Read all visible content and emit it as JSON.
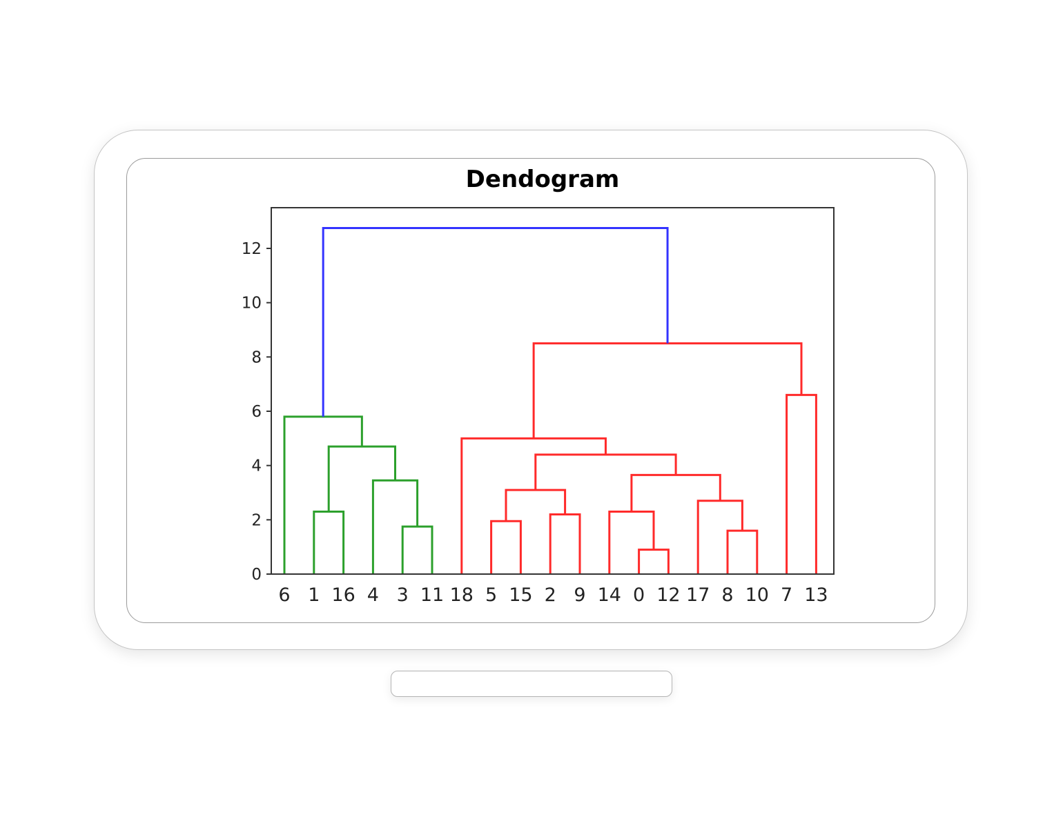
{
  "chart_data": {
    "type": "dendrogram",
    "title": "Dendogram",
    "xlabel": "",
    "ylabel": "",
    "ylim": [
      0,
      13.5
    ],
    "y_ticks": [
      0,
      2,
      4,
      6,
      8,
      10,
      12
    ],
    "grid": false,
    "leaf_order": [
      "6",
      "1",
      "16",
      "4",
      "3",
      "11",
      "18",
      "5",
      "15",
      "2",
      "9",
      "14",
      "0",
      "12",
      "17",
      "8",
      "10",
      "7",
      "13"
    ],
    "colors": {
      "cluster_1": "#2ca02c",
      "cluster_2": "#ff2a2a",
      "root_link": "#3333ff"
    },
    "merges": [
      {
        "id": "m_0_12",
        "left": "0",
        "right": "12",
        "height": 0.9,
        "color": "cluster_2"
      },
      {
        "id": "m_8_10",
        "left": "8",
        "right": "10",
        "height": 1.6,
        "color": "cluster_2"
      },
      {
        "id": "m_3_11",
        "left": "3",
        "right": "11",
        "height": 1.75,
        "color": "cluster_1"
      },
      {
        "id": "m_5_15",
        "left": "5",
        "right": "15",
        "height": 1.95,
        "color": "cluster_2"
      },
      {
        "id": "m_2_9",
        "left": "2",
        "right": "9",
        "height": 2.2,
        "color": "cluster_2"
      },
      {
        "id": "m_1_16",
        "left": "1",
        "right": "16",
        "height": 2.3,
        "color": "cluster_1"
      },
      {
        "id": "m_14",
        "left": "14",
        "right": "m_0_12",
        "height": 2.3,
        "color": "cluster_2"
      },
      {
        "id": "m_17",
        "left": "17",
        "right": "m_8_10",
        "height": 2.7,
        "color": "cluster_2"
      },
      {
        "id": "m_5_2",
        "left": "m_5_15",
        "right": "m_2_9",
        "height": 3.1,
        "color": "cluster_2"
      },
      {
        "id": "m_4",
        "left": "4",
        "right": "m_3_11",
        "height": 3.45,
        "color": "cluster_1"
      },
      {
        "id": "m_14_17",
        "left": "m_14",
        "right": "m_17",
        "height": 3.65,
        "color": "cluster_2"
      },
      {
        "id": "m_5_14",
        "left": "m_5_2",
        "right": "m_14_17",
        "height": 4.4,
        "color": "cluster_2"
      },
      {
        "id": "m_1_4",
        "left": "m_1_16",
        "right": "m_4",
        "height": 4.7,
        "color": "cluster_1"
      },
      {
        "id": "m_18",
        "left": "18",
        "right": "m_5_14",
        "height": 5.0,
        "color": "cluster_2"
      },
      {
        "id": "m_6",
        "left": "6",
        "right": "m_1_4",
        "height": 5.8,
        "color": "cluster_1"
      },
      {
        "id": "m_7_13",
        "left": "7",
        "right": "13",
        "height": 6.6,
        "color": "cluster_2"
      },
      {
        "id": "m_red",
        "left": "m_18",
        "right": "m_7_13",
        "height": 8.5,
        "color": "cluster_2"
      },
      {
        "id": "m_root",
        "left": "m_6",
        "right": "m_red",
        "height": 12.75,
        "color": "root_link"
      }
    ]
  }
}
